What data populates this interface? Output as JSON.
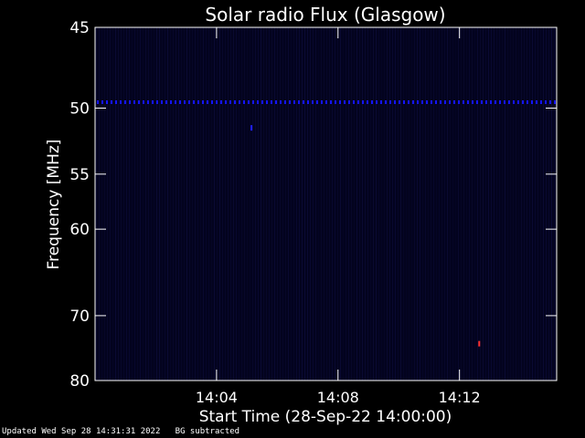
{
  "chart_data": {
    "type": "heatmap",
    "title": "Solar radio Flux (Glasgow)",
    "xlabel": "Start Time (28-Sep-22 14:00:00)",
    "ylabel": "Frequency [MHz]",
    "x_ticks": [
      "14:04",
      "14:08",
      "14:12"
    ],
    "y_ticks": [
      "45",
      "50",
      "55",
      "60",
      "70",
      "80"
    ],
    "y_scale": "reciprocal",
    "ylim": [
      45,
      80
    ],
    "xlim_minutes": [
      0.0,
      15.2
    ],
    "x_tick_minutes": [
      4,
      8,
      12
    ],
    "y_tick_values": [
      45,
      50,
      55,
      60,
      70,
      80
    ],
    "background_color": "#03031e",
    "interference_band_mhz": 49.6,
    "interference_color": "#1414ff",
    "spot_events": [
      {
        "time_minutes": 5.15,
        "freq_mhz": 51.4,
        "color": "#2020ff"
      },
      {
        "time_minutes": 12.65,
        "freq_mhz": 74.0,
        "color": "#ff3030"
      }
    ]
  },
  "footer": {
    "updated": "Updated Wed Sep 28 14:31:31 2022",
    "note": "BG subtracted"
  }
}
